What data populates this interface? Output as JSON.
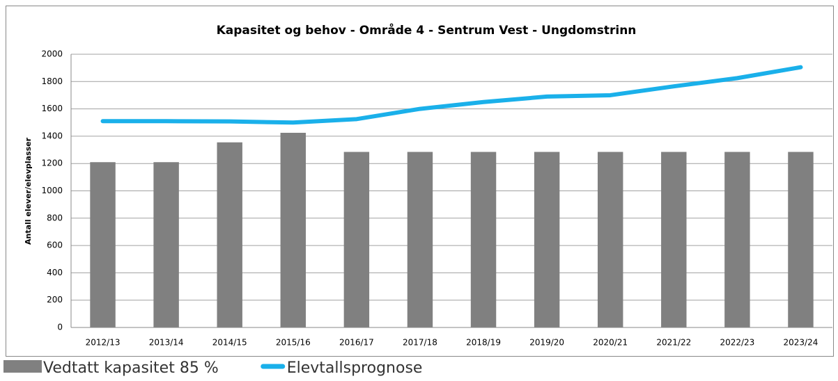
{
  "chart_data": {
    "type": "bar",
    "title": "Kapasitet og behov - Område 4 - Sentrum Vest - Ungdomstrinn",
    "y_label": "Antall elever/elevplasser",
    "categories": [
      "2012/13",
      "2013/14",
      "2014/15",
      "2015/16",
      "2016/17",
      "2017/18",
      "2018/19",
      "2019/20",
      "2020/21",
      "2021/22",
      "2022/23",
      "2023/24"
    ],
    "series": [
      {
        "name": "Vedtatt kapasitet 85 %",
        "type": "bar",
        "color": "#808080",
        "values": [
          1210,
          1210,
          1355,
          1425,
          1285,
          1285,
          1285,
          1285,
          1285,
          1285,
          1285,
          1285
        ]
      },
      {
        "name": "Elevtallsprognose",
        "type": "line",
        "color": "#1ab0ea",
        "values": [
          1510,
          1510,
          1508,
          1500,
          1525,
          1600,
          1650,
          1690,
          1700,
          1765,
          1825,
          1905
        ]
      }
    ],
    "ylim": [
      0,
      2000
    ],
    "yticks": [
      0,
      200,
      400,
      600,
      800,
      1000,
      1200,
      1400,
      1600,
      1800,
      2000
    ],
    "grid": true,
    "legend": "bottom-left"
  }
}
